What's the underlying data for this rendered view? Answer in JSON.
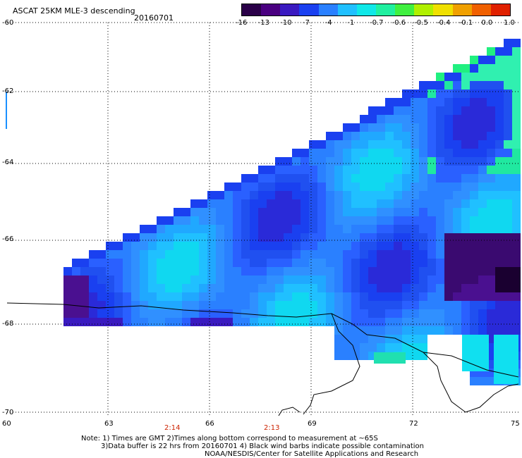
{
  "header": {
    "title": "ASCAT 25KM MLE-3 descending",
    "date": "20160701"
  },
  "colorbar": {
    "colors": [
      "#2a0048",
      "#4a0080",
      "#3a1ac0",
      "#1a40f0",
      "#2a80ff",
      "#20c0ff",
      "#10e8e8",
      "#20f0a0",
      "#40f040",
      "#b0f000",
      "#f0e000",
      "#f0a000",
      "#f06000",
      "#e02000"
    ],
    "labels": [
      "-16",
      "-13",
      "-10",
      "-7",
      "-4",
      "-1",
      "-0.7",
      "-0.6",
      "-0.5",
      "-0.4",
      "-0.1",
      "0.0",
      "1.0"
    ]
  },
  "axes": {
    "lat_labels": [
      "-60",
      "-62",
      "-64",
      "-66",
      "-68",
      "-70"
    ],
    "lon_labels": [
      "60",
      "63",
      "66",
      "69",
      "72",
      "75"
    ]
  },
  "time_labels": [
    "2:14",
    "2:13"
  ],
  "notes": {
    "line1": "Note: 1) Times are GMT 2)Times along bottom correspond to measurement at ~65S",
    "line2": "3)Data buffer is 22 hrs from 20160701 4) Black wind barbs indicate possible contamination",
    "line3": "NOAA/NESDIS/Center for Satellite Applications and Research"
  }
}
